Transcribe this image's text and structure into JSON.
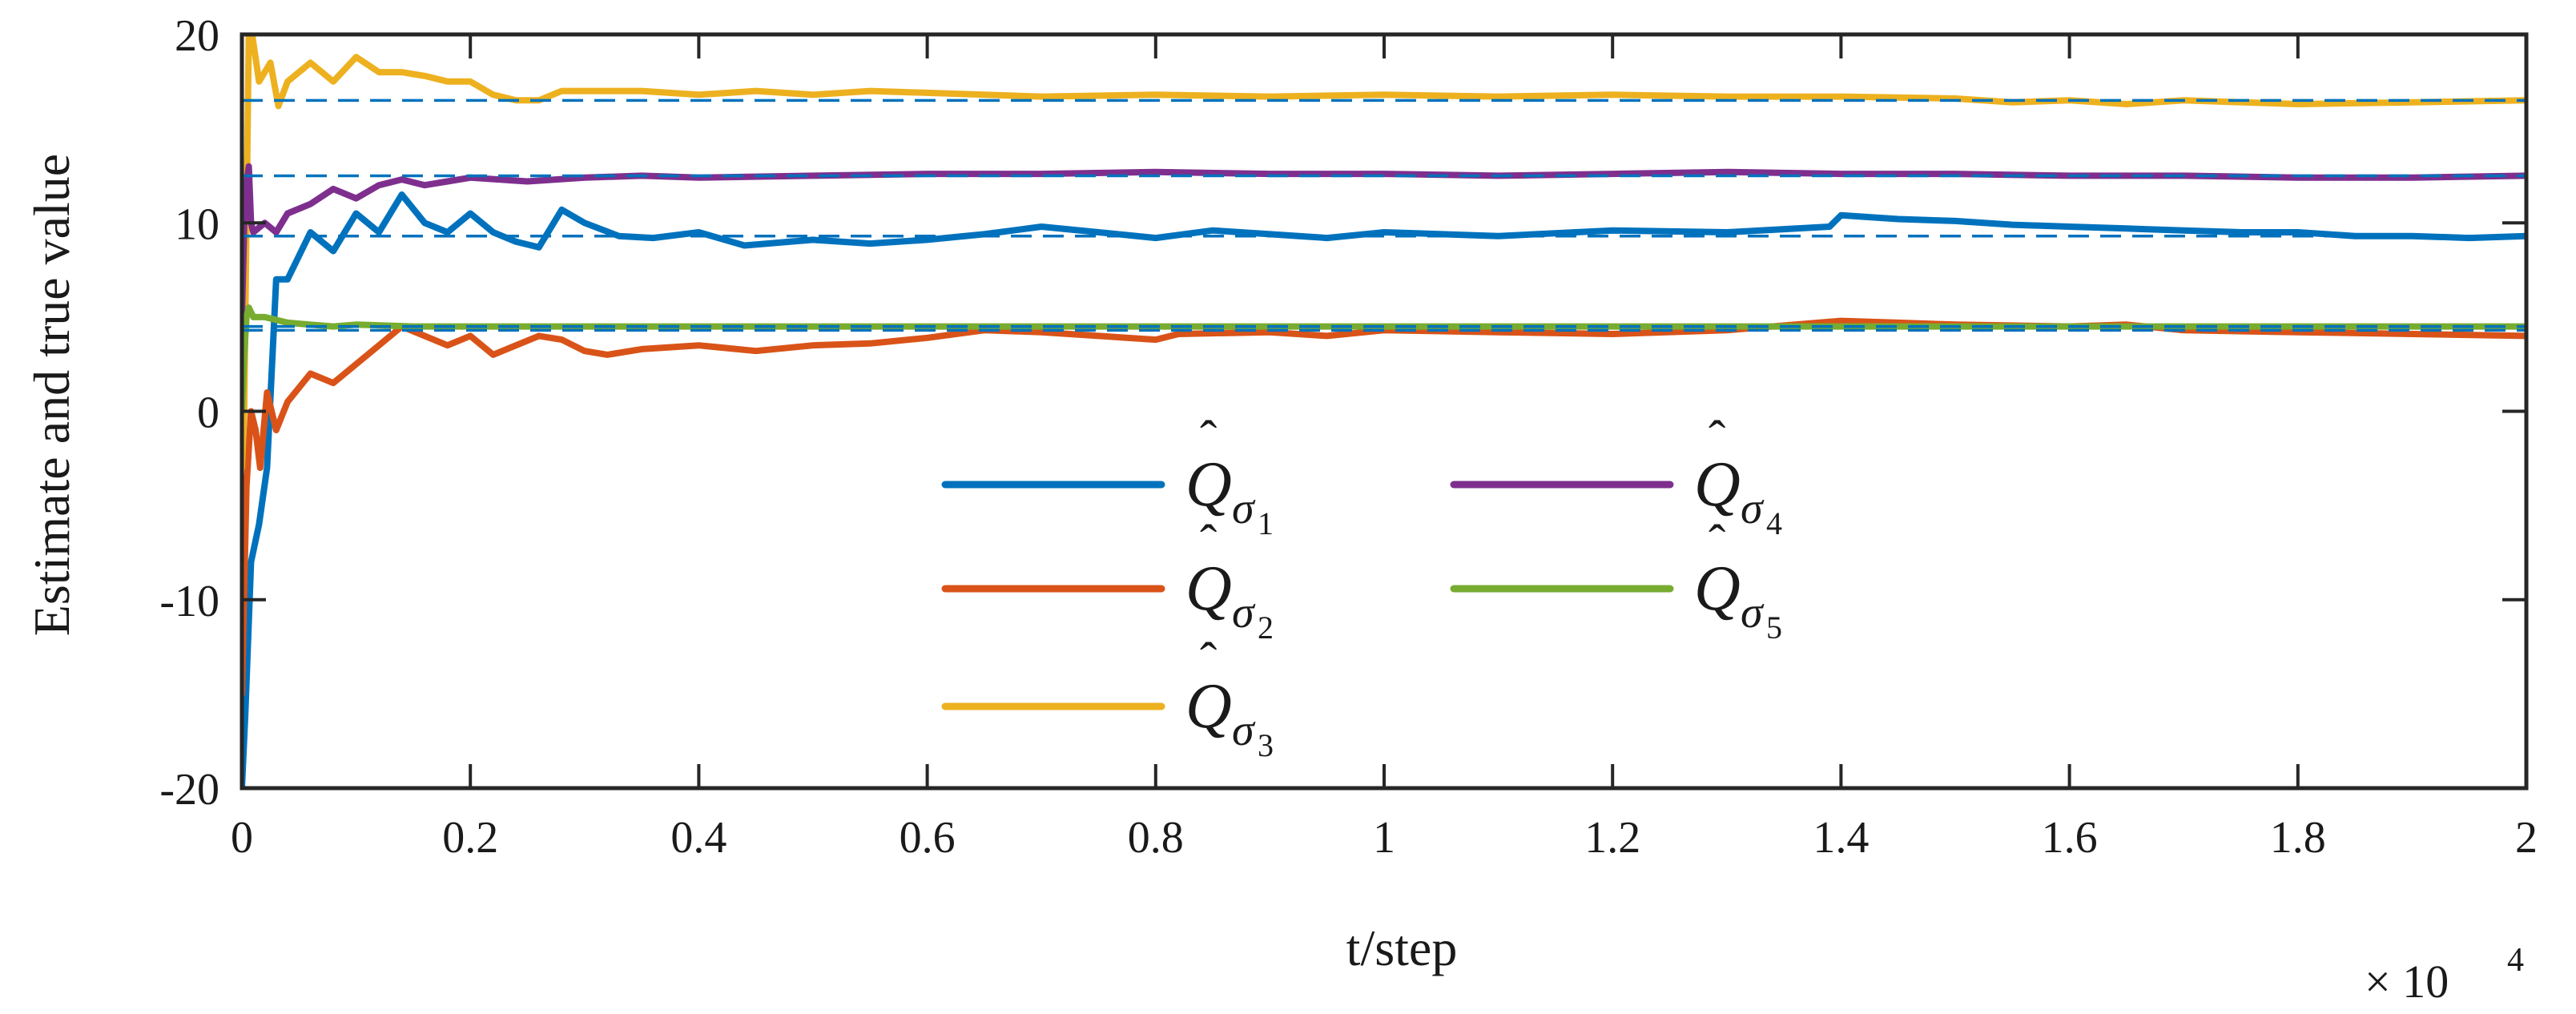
{
  "chart_data": {
    "type": "line",
    "title": "",
    "xlabel": "t/step",
    "ylabel": "Estimate and true value",
    "xlim": [
      0,
      20000
    ],
    "ylim": [
      -20,
      20
    ],
    "x_ticks": [
      0,
      2000,
      4000,
      6000,
      8000,
      10000,
      12000,
      14000,
      16000,
      18000,
      20000
    ],
    "x_tick_labels": [
      "0",
      "0.2",
      "0.4",
      "0.6",
      "0.8",
      "1",
      "1.2",
      "1.4",
      "1.6",
      "1.8",
      "2"
    ],
    "y_ticks": [
      -20,
      -10,
      0,
      10,
      20
    ],
    "y_tick_labels": [
      "-20",
      "-10",
      "0",
      "10",
      "20"
    ],
    "x_multiplier": {
      "base": "× 10",
      "exponent": "4"
    },
    "grid": false,
    "legend_position": "center",
    "series": [
      {
        "name": "Q̂_σ1",
        "symbol": "Q",
        "subscript": "σ",
        "index": "1",
        "color": "#0072BD",
        "true_value": 9.3,
        "points": [
          [
            0,
            -20
          ],
          [
            30,
            -16
          ],
          [
            80,
            -8
          ],
          [
            150,
            -6
          ],
          [
            220,
            -3
          ],
          [
            300,
            7
          ],
          [
            400,
            7
          ],
          [
            600,
            9.5
          ],
          [
            800,
            8.5
          ],
          [
            1000,
            10.5
          ],
          [
            1200,
            9.5
          ],
          [
            1400,
            11.5
          ],
          [
            1600,
            10
          ],
          [
            1800,
            9.5
          ],
          [
            2000,
            10.5
          ],
          [
            2200,
            9.5
          ],
          [
            2400,
            9
          ],
          [
            2600,
            8.7
          ],
          [
            2800,
            10.7
          ],
          [
            3000,
            10
          ],
          [
            3300,
            9.3
          ],
          [
            3600,
            9.2
          ],
          [
            4000,
            9.5
          ],
          [
            4400,
            8.8
          ],
          [
            5000,
            9.1
          ],
          [
            5500,
            8.9
          ],
          [
            6000,
            9.1
          ],
          [
            6500,
            9.4
          ],
          [
            7000,
            9.8
          ],
          [
            7500,
            9.5
          ],
          [
            8000,
            9.2
          ],
          [
            8500,
            9.6
          ],
          [
            9000,
            9.4
          ],
          [
            9500,
            9.2
          ],
          [
            10000,
            9.5
          ],
          [
            11000,
            9.3
          ],
          [
            12000,
            9.6
          ],
          [
            13000,
            9.5
          ],
          [
            13900,
            9.8
          ],
          [
            14000,
            10.4
          ],
          [
            14500,
            10.2
          ],
          [
            15000,
            10.1
          ],
          [
            15500,
            9.9
          ],
          [
            16000,
            9.8
          ],
          [
            16500,
            9.7
          ],
          [
            17000,
            9.6
          ],
          [
            17500,
            9.5
          ],
          [
            18000,
            9.5
          ],
          [
            18500,
            9.3
          ],
          [
            19000,
            9.3
          ],
          [
            19500,
            9.2
          ],
          [
            20000,
            9.3
          ]
        ]
      },
      {
        "name": "Q̂_σ2",
        "symbol": "Q",
        "subscript": "σ",
        "index": "2",
        "color": "#D95319",
        "true_value": 4.3,
        "points": [
          [
            0,
            -15
          ],
          [
            40,
            -4
          ],
          [
            80,
            0
          ],
          [
            120,
            -1
          ],
          [
            160,
            -3
          ],
          [
            220,
            1
          ],
          [
            300,
            -1
          ],
          [
            400,
            0.5
          ],
          [
            600,
            2
          ],
          [
            800,
            1.5
          ],
          [
            1000,
            2.5
          ],
          [
            1200,
            3.5
          ],
          [
            1400,
            4.5
          ],
          [
            1600,
            4
          ],
          [
            1800,
            3.5
          ],
          [
            2000,
            4
          ],
          [
            2200,
            3
          ],
          [
            2400,
            3.5
          ],
          [
            2600,
            4
          ],
          [
            2800,
            3.8
          ],
          [
            3000,
            3.2
          ],
          [
            3200,
            3
          ],
          [
            3500,
            3.3
          ],
          [
            4000,
            3.5
          ],
          [
            4500,
            3.2
          ],
          [
            5000,
            3.5
          ],
          [
            5500,
            3.6
          ],
          [
            6000,
            3.9
          ],
          [
            6500,
            4.3
          ],
          [
            7000,
            4.2
          ],
          [
            7500,
            4
          ],
          [
            8000,
            3.8
          ],
          [
            8200,
            4.1
          ],
          [
            9000,
            4.2
          ],
          [
            9500,
            4
          ],
          [
            10000,
            4.3
          ],
          [
            11000,
            4.2
          ],
          [
            12000,
            4.1
          ],
          [
            13000,
            4.3
          ],
          [
            14000,
            4.8
          ],
          [
            14500,
            4.7
          ],
          [
            15000,
            4.6
          ],
          [
            16000,
            4.5
          ],
          [
            16500,
            4.6
          ],
          [
            17000,
            4.3
          ],
          [
            18000,
            4.2
          ],
          [
            19000,
            4.1
          ],
          [
            20000,
            4
          ]
        ]
      },
      {
        "name": "Q̂_σ3",
        "symbol": "Q",
        "subscript": "σ",
        "index": "3",
        "color": "#EDB120",
        "true_value": 16.5,
        "points": [
          [
            0,
            -3
          ],
          [
            20,
            0
          ],
          [
            40,
            10
          ],
          [
            60,
            20
          ],
          [
            90,
            20
          ],
          [
            150,
            17.5
          ],
          [
            250,
            18.5
          ],
          [
            320,
            16.2
          ],
          [
            400,
            17.5
          ],
          [
            600,
            18.5
          ],
          [
            800,
            17.5
          ],
          [
            1000,
            18.8
          ],
          [
            1200,
            18
          ],
          [
            1400,
            18
          ],
          [
            1600,
            17.8
          ],
          [
            1800,
            17.5
          ],
          [
            2000,
            17.5
          ],
          [
            2200,
            16.8
          ],
          [
            2400,
            16.5
          ],
          [
            2600,
            16.5
          ],
          [
            2800,
            17
          ],
          [
            3000,
            17
          ],
          [
            3500,
            17
          ],
          [
            4000,
            16.8
          ],
          [
            4500,
            17
          ],
          [
            5000,
            16.8
          ],
          [
            5500,
            17
          ],
          [
            6000,
            16.9
          ],
          [
            7000,
            16.7
          ],
          [
            8000,
            16.8
          ],
          [
            9000,
            16.7
          ],
          [
            10000,
            16.8
          ],
          [
            11000,
            16.7
          ],
          [
            12000,
            16.8
          ],
          [
            13000,
            16.7
          ],
          [
            14000,
            16.7
          ],
          [
            15000,
            16.6
          ],
          [
            15500,
            16.4
          ],
          [
            16000,
            16.5
          ],
          [
            16500,
            16.3
          ],
          [
            17000,
            16.5
          ],
          [
            18000,
            16.3
          ],
          [
            19000,
            16.4
          ],
          [
            20000,
            16.5
          ]
        ]
      },
      {
        "name": "Q̂_σ4",
        "symbol": "Q",
        "subscript": "σ",
        "index": "4",
        "color": "#7E2F8E",
        "true_value": 12.5,
        "points": [
          [
            0,
            5
          ],
          [
            20,
            10
          ],
          [
            40,
            12
          ],
          [
            60,
            13
          ],
          [
            80,
            10
          ],
          [
            100,
            9.5
          ],
          [
            200,
            10
          ],
          [
            300,
            9.5
          ],
          [
            400,
            10.5
          ],
          [
            600,
            11
          ],
          [
            800,
            11.8
          ],
          [
            1000,
            11.3
          ],
          [
            1200,
            12
          ],
          [
            1400,
            12.3
          ],
          [
            1600,
            12
          ],
          [
            1800,
            12.2
          ],
          [
            2000,
            12.4
          ],
          [
            2500,
            12.2
          ],
          [
            3000,
            12.4
          ],
          [
            3500,
            12.5
          ],
          [
            4000,
            12.4
          ],
          [
            5000,
            12.5
          ],
          [
            6000,
            12.6
          ],
          [
            7000,
            12.6
          ],
          [
            8000,
            12.7
          ],
          [
            9000,
            12.6
          ],
          [
            10000,
            12.6
          ],
          [
            11000,
            12.5
          ],
          [
            12000,
            12.6
          ],
          [
            13000,
            12.7
          ],
          [
            14000,
            12.6
          ],
          [
            15000,
            12.6
          ],
          [
            16000,
            12.5
          ],
          [
            17000,
            12.5
          ],
          [
            18000,
            12.4
          ],
          [
            19000,
            12.4
          ],
          [
            20000,
            12.5
          ]
        ]
      },
      {
        "name": "Q̂_σ5",
        "symbol": "Q",
        "subscript": "σ",
        "index": "5",
        "color": "#77AC30",
        "true_value": 4.5,
        "points": [
          [
            0,
            0
          ],
          [
            20,
            3
          ],
          [
            40,
            5
          ],
          [
            60,
            5.5
          ],
          [
            100,
            5
          ],
          [
            200,
            5
          ],
          [
            400,
            4.7
          ],
          [
            600,
            4.6
          ],
          [
            800,
            4.5
          ],
          [
            1000,
            4.6
          ],
          [
            1500,
            4.5
          ],
          [
            2000,
            4.5
          ],
          [
            3000,
            4.5
          ],
          [
            4000,
            4.5
          ],
          [
            6000,
            4.5
          ],
          [
            8000,
            4.5
          ],
          [
            10000,
            4.5
          ],
          [
            12000,
            4.5
          ],
          [
            14000,
            4.5
          ],
          [
            16000,
            4.5
          ],
          [
            18000,
            4.5
          ],
          [
            20000,
            4.5
          ]
        ]
      }
    ]
  }
}
